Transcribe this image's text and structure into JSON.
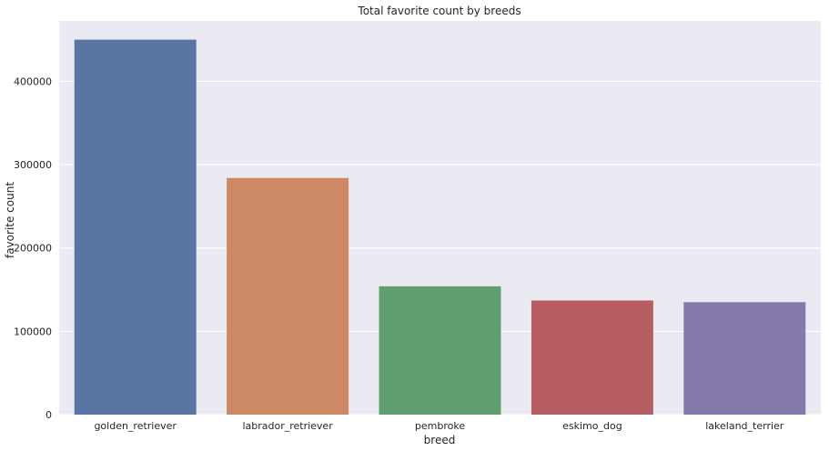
{
  "chart_data": {
    "type": "bar",
    "title": "Total favorite count by breeds",
    "xlabel": "breed",
    "ylabel": "favorite count",
    "categories": [
      "golden_retriever",
      "labrador_retriever",
      "pembroke",
      "eskimo_dog",
      "lakeland_terrier"
    ],
    "values": [
      450000,
      284000,
      154000,
      137000,
      135000
    ],
    "colors": [
      "#5875a4",
      "#cc8963",
      "#5f9e6e",
      "#b55d60",
      "#857aab"
    ],
    "ylim": [
      0,
      472500
    ],
    "yticks": [
      0,
      100000,
      200000,
      300000,
      400000
    ],
    "ytick_labels": [
      "0",
      "100000",
      "200000",
      "300000",
      "400000"
    ],
    "grid": true,
    "background": "#eaeaf2",
    "grid_color": "#ffffff"
  }
}
